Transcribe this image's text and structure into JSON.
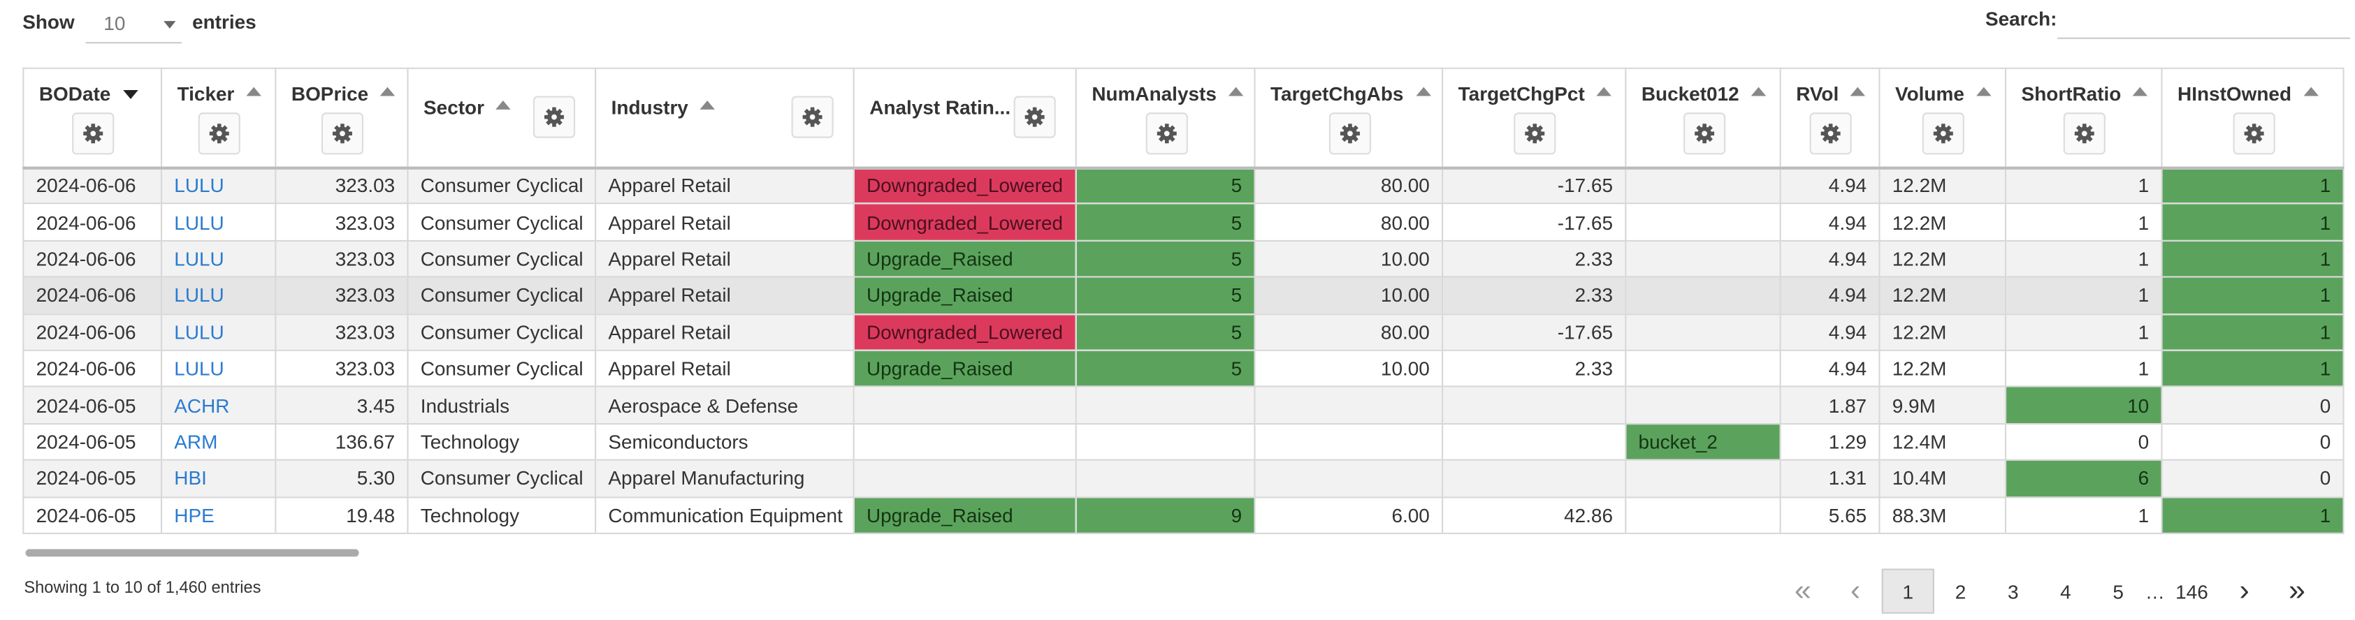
{
  "controls": {
    "show_label": "Show",
    "page_size": "10",
    "entries_label": "entries",
    "search_label": "Search:"
  },
  "table": {
    "columns": [
      "BODate",
      "Ticker",
      "BOPrice",
      "Sector",
      "Industry",
      "Analyst Ratin...",
      "NumAnalysts",
      "TargetChgAbs",
      "TargetChgPct",
      "Bucket012",
      "RVol",
      "Volume",
      "ShortRatio",
      "HInstOwned"
    ],
    "sorted_column": "BODate",
    "colors": {
      "red": "#dc3a5c",
      "green": "#5ba35c",
      "link": "#2a7bd0"
    },
    "rows": [
      [
        "2024-06-06",
        "LULU",
        "323.03",
        "Consumer Cyclical",
        "Apparel Retail",
        {
          "text": "Downgraded_Lowered",
          "color": "red"
        },
        {
          "text": "5",
          "color": "green"
        },
        "80.00",
        "-17.65",
        null,
        "4.94",
        "12.2M",
        "1",
        {
          "text": "1",
          "color": "green"
        }
      ],
      [
        "2024-06-06",
        "LULU",
        "323.03",
        "Consumer Cyclical",
        "Apparel Retail",
        {
          "text": "Downgraded_Lowered",
          "color": "red"
        },
        {
          "text": "5",
          "color": "green"
        },
        "80.00",
        "-17.65",
        null,
        "4.94",
        "12.2M",
        "1",
        {
          "text": "1",
          "color": "green"
        }
      ],
      [
        "2024-06-06",
        "LULU",
        "323.03",
        "Consumer Cyclical",
        "Apparel Retail",
        {
          "text": "Upgrade_Raised",
          "color": "green"
        },
        {
          "text": "5",
          "color": "green"
        },
        "10.00",
        "2.33",
        null,
        "4.94",
        "12.2M",
        "1",
        {
          "text": "1",
          "color": "green"
        }
      ],
      [
        "2024-06-06",
        "LULU",
        "323.03",
        "Consumer Cyclical",
        "Apparel Retail",
        {
          "text": "Upgrade_Raised",
          "color": "green"
        },
        {
          "text": "5",
          "color": "green"
        },
        "10.00",
        "2.33",
        null,
        "4.94",
        "12.2M",
        "1",
        {
          "text": "1",
          "color": "green"
        }
      ],
      [
        "2024-06-06",
        "LULU",
        "323.03",
        "Consumer Cyclical",
        "Apparel Retail",
        {
          "text": "Downgraded_Lowered",
          "color": "red"
        },
        {
          "text": "5",
          "color": "green"
        },
        "80.00",
        "-17.65",
        null,
        "4.94",
        "12.2M",
        "1",
        {
          "text": "1",
          "color": "green"
        }
      ],
      [
        "2024-06-06",
        "LULU",
        "323.03",
        "Consumer Cyclical",
        "Apparel Retail",
        {
          "text": "Upgrade_Raised",
          "color": "green"
        },
        {
          "text": "5",
          "color": "green"
        },
        "10.00",
        "2.33",
        null,
        "4.94",
        "12.2M",
        "1",
        {
          "text": "1",
          "color": "green"
        }
      ],
      [
        "2024-06-05",
        "ACHR",
        "3.45",
        "Industrials",
        "Aerospace & Defense",
        null,
        null,
        null,
        null,
        null,
        "1.87",
        "9.9M",
        {
          "text": "10",
          "color": "green"
        },
        "0"
      ],
      [
        "2024-06-05",
        "ARM",
        "136.67",
        "Technology",
        "Semiconductors",
        null,
        null,
        null,
        null,
        {
          "text": "bucket_2",
          "color": "green"
        },
        "1.29",
        "12.4M",
        "0",
        "0"
      ],
      [
        "2024-06-05",
        "HBI",
        "5.30",
        "Consumer Cyclical",
        "Apparel Manufacturing",
        null,
        null,
        null,
        null,
        null,
        "1.31",
        "10.4M",
        {
          "text": "6",
          "color": "green"
        },
        "0"
      ],
      [
        "2024-06-05",
        "HPE",
        "19.48",
        "Technology",
        "Communication Equipment",
        {
          "text": "Upgrade_Raised",
          "color": "green"
        },
        {
          "text": "9",
          "color": "green"
        },
        "6.00",
        "42.86",
        null,
        "5.65",
        "88.3M",
        "1",
        {
          "text": "1",
          "color": "green"
        }
      ]
    ]
  },
  "footer": {
    "info": "Showing 1 to 10 of 1,460 entries",
    "pagination": {
      "first": "«",
      "prev": "‹",
      "pages": [
        "1",
        "2",
        "3",
        "4",
        "5",
        "…",
        "146"
      ],
      "current": "1",
      "next": "›",
      "last": "»"
    }
  }
}
